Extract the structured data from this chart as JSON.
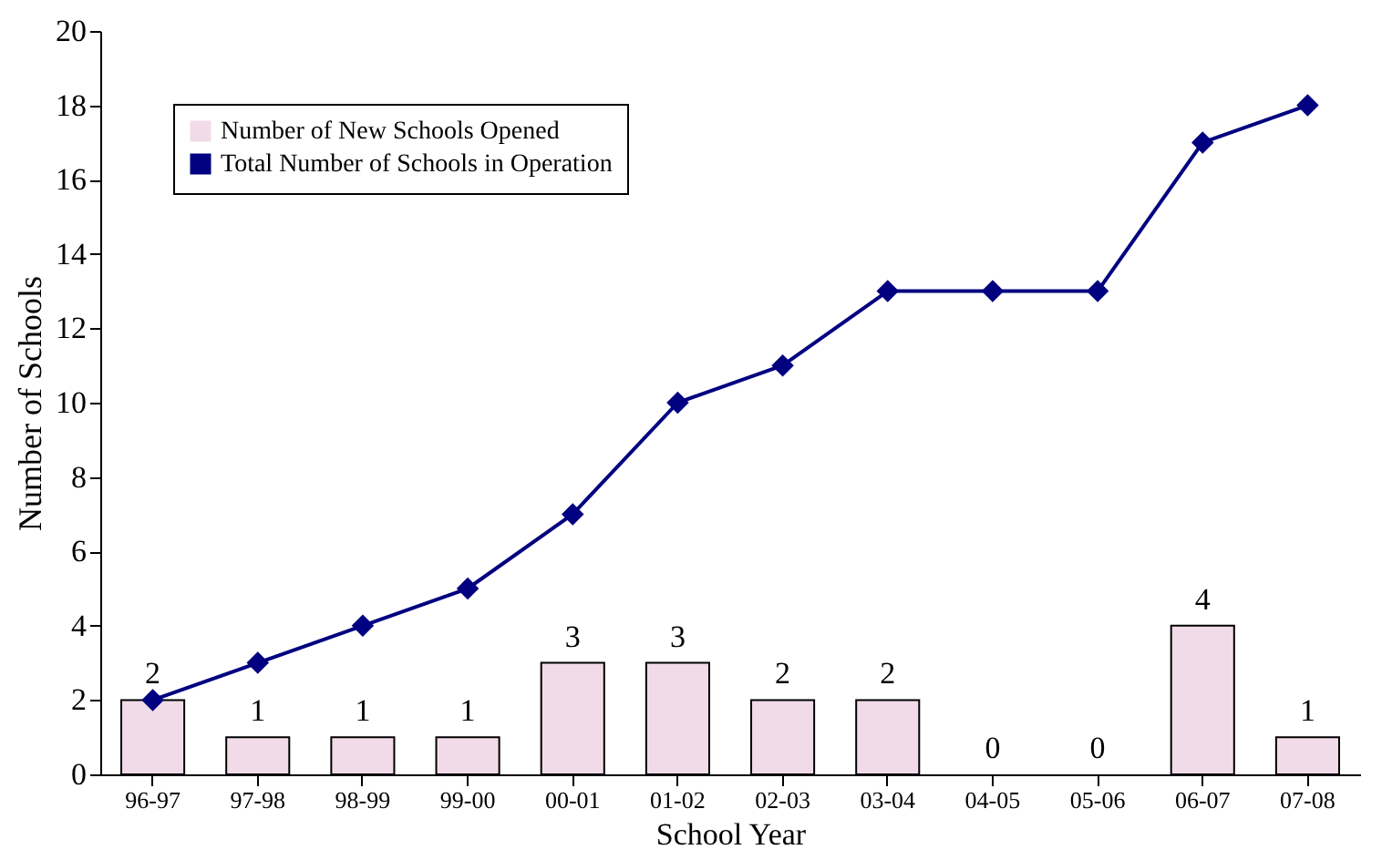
{
  "chart_data": {
    "type": "bar",
    "xlabel": "School Year",
    "ylabel": "Number of Schools",
    "categories": [
      "96-97",
      "97-98",
      "98-99",
      "99-00",
      "00-01",
      "01-02",
      "02-03",
      "03-04",
      "04-05",
      "05-06",
      "06-07",
      "07-08"
    ],
    "series": [
      {
        "name": "Number of New Schools Opened",
        "color": "#f2dbe9",
        "values": [
          2,
          1,
          1,
          1,
          3,
          3,
          2,
          2,
          0,
          0,
          4,
          1
        ],
        "value_labels": [
          "2",
          "1",
          "1",
          "1",
          "3",
          "3",
          "2",
          "2",
          "0",
          "0",
          "4",
          "1"
        ]
      },
      {
        "name": "Total Number of Schools in Operation",
        "type": "line",
        "color": "#000080",
        "marker": "diamond",
        "values": [
          2,
          3,
          4,
          5,
          7,
          10,
          11,
          13,
          13,
          13,
          17,
          18
        ]
      }
    ],
    "ylim": [
      0,
      20
    ],
    "yticks": [
      0,
      2,
      4,
      6,
      8,
      10,
      12,
      14,
      16,
      18,
      20
    ],
    "grid": false,
    "legend": "top left"
  }
}
